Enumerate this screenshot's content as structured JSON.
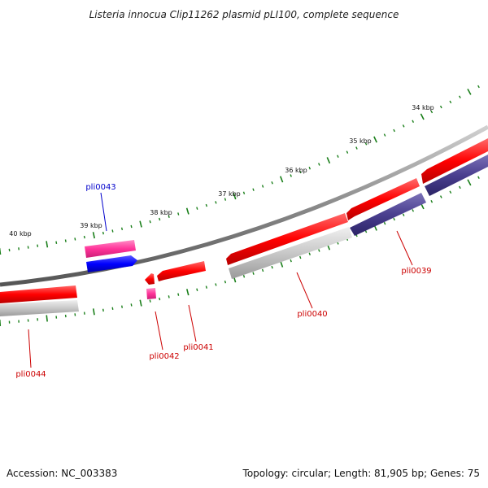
{
  "title": "Listeria innocua Clip11262 plasmid pLI100, complete sequence",
  "footer": {
    "accession": "Accession: NC_003383",
    "info": "Topology: circular; Length: 81,905 bp; Genes: 75"
  },
  "tick_labels": [
    "34 kbp",
    "35 kbp",
    "36 kbp",
    "37 kbp",
    "38 kbp",
    "39 kbp",
    "40 kbp"
  ],
  "gene_labels": [
    "pli0039",
    "pli0040",
    "pli0041",
    "pli0042",
    "pli0043",
    "pli0044"
  ],
  "colors": {
    "forward_cds": "#ff0000",
    "reverse_cds": "#ff0000",
    "forward_gene_bar": "#aaaaaa",
    "reverse_cds_dark": "#4a3f8f",
    "pink_feature": "#ff3399",
    "blue_feature": "#0000ff",
    "backbone": "#888888",
    "ticks": "#1a7f1a",
    "label_red": "#cc0000",
    "label_blue": "#0000cc"
  }
}
